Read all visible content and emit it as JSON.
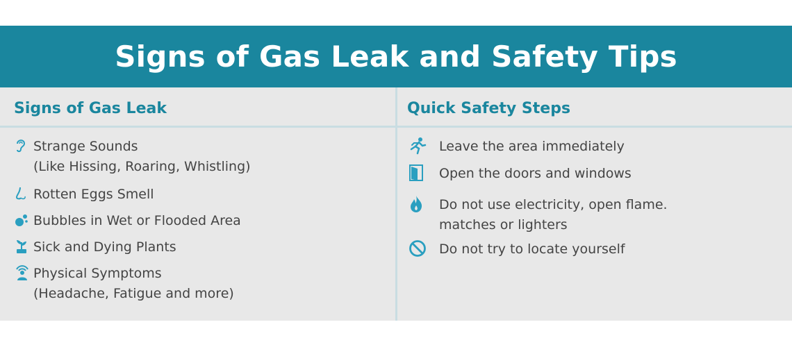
{
  "title": "Signs of Gas Leak and Safety Tips",
  "left": {
    "heading": "Signs of Gas Leak",
    "items": [
      {
        "icon": "ear-icon",
        "line1": "Strange Sounds",
        "line2": "(Like Hissing, Roaring, Whistling)"
      },
      {
        "icon": "nose-icon",
        "line1": "Rotten Eggs Smell",
        "line2": ""
      },
      {
        "icon": "bubbles-icon",
        "line1": "Bubbles in Wet or Flooded Area",
        "line2": ""
      },
      {
        "icon": "plant-icon",
        "line1": "Sick and Dying Plants",
        "line2": ""
      },
      {
        "icon": "person-alert-icon",
        "line1": "Physical Symptoms",
        "line2": "(Headache, Fatigue and more)"
      }
    ]
  },
  "right": {
    "heading": "Quick Safety Steps",
    "items": [
      {
        "icon": "running-person-icon",
        "line1": "Leave the area immediately",
        "line2": ""
      },
      {
        "icon": "door-icon",
        "line1": "Open the doors and windows",
        "line2": ""
      },
      {
        "icon": "flame-icon",
        "line1": "Do not use electricity, open flame.",
        "line2": "matches or lighters"
      },
      {
        "icon": "prohibited-icon",
        "line1": "Do not try to locate yourself",
        "line2": ""
      }
    ]
  },
  "colors": {
    "accent": "#1a869e",
    "icon": "#2a9fc0",
    "panel": "#e8e8e8",
    "text": "#444444"
  }
}
